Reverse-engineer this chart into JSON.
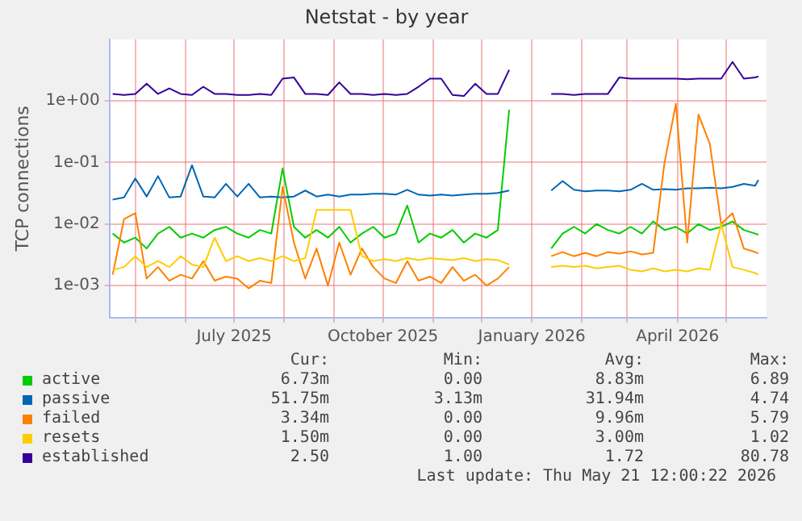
{
  "chart_data": {
    "type": "line",
    "title": "Netstat - by year",
    "ylabel": "TCP connections",
    "log": "y",
    "grid": true,
    "legend": "bottom",
    "marker": "none",
    "line_style": "solid",
    "x": [
      "2025-04-17",
      "2025-04-24",
      "2025-05-01",
      "2025-05-08",
      "2025-05-15",
      "2025-05-22",
      "2025-05-29",
      "2025-06-05",
      "2025-06-12",
      "2025-06-19",
      "2025-06-26",
      "2025-07-03",
      "2025-07-10",
      "2025-07-17",
      "2025-07-24",
      "2025-07-31",
      "2025-08-07",
      "2025-08-14",
      "2025-08-21",
      "2025-08-28",
      "2025-09-04",
      "2025-09-11",
      "2025-09-18",
      "2025-09-25",
      "2025-10-02",
      "2025-10-09",
      "2025-10-16",
      "2025-10-23",
      "2025-10-30",
      "2025-11-06",
      "2025-11-13",
      "2025-11-20",
      "2025-11-27",
      "2025-12-04",
      "2025-12-11",
      "2025-12-18",
      "2025-12-30",
      "2026-01-13",
      "2026-01-20",
      "2026-01-27",
      "2026-02-03",
      "2026-02-10",
      "2026-02-17",
      "2026-02-24",
      "2026-03-03",
      "2026-03-10",
      "2026-03-17",
      "2026-03-24",
      "2026-03-31",
      "2026-04-07",
      "2026-04-14",
      "2026-04-21",
      "2026-04-28",
      "2026-05-05",
      "2026-05-12",
      "2026-05-19",
      "2026-05-21"
    ],
    "xlim": [
      "2025-04-15",
      "2026-05-26"
    ],
    "xticks": [
      {
        "value": "2025-05-01",
        "label": null
      },
      {
        "value": "2025-06-01",
        "label": null
      },
      {
        "value": "2025-07-01",
        "label": "July 2025"
      },
      {
        "value": "2025-08-01",
        "label": null
      },
      {
        "value": "2025-09-01",
        "label": null
      },
      {
        "value": "2025-10-01",
        "label": "October 2025"
      },
      {
        "value": "2025-11-01",
        "label": null
      },
      {
        "value": "2025-12-01",
        "label": null
      },
      {
        "value": "2026-01-01",
        "label": "January 2026"
      },
      {
        "value": "2026-02-01",
        "label": null
      },
      {
        "value": "2026-03-01",
        "label": null
      },
      {
        "value": "2026-04-01",
        "label": "April 2026"
      },
      {
        "value": "2026-05-01",
        "label": null
      }
    ],
    "ylim": [
      0.00034,
      10
    ],
    "yticks": [
      {
        "value": 0.001,
        "label": "1e-03"
      },
      {
        "value": 0.01,
        "label": "1e-02"
      },
      {
        "value": 0.1,
        "label": "1e-01"
      },
      {
        "value": 1,
        "label": "1e+00"
      }
    ],
    "series": [
      {
        "name": "active",
        "color": "#00cc00",
        "values": [
          0.007,
          0.005,
          0.006,
          0.004,
          0.007,
          0.009,
          0.006,
          0.007,
          0.006,
          0.008,
          0.009,
          0.007,
          0.006,
          0.008,
          0.007,
          0.08,
          0.009,
          0.006,
          0.008,
          0.006,
          0.009,
          0.005,
          0.007,
          0.009,
          0.006,
          0.007,
          0.02,
          0.005,
          0.007,
          0.006,
          0.008,
          0.005,
          0.007,
          0.006,
          0.008,
          0.72,
          null,
          0.004,
          0.007,
          0.009,
          0.007,
          0.01,
          0.008,
          0.007,
          0.009,
          0.007,
          0.011,
          0.008,
          0.009,
          0.007,
          0.01,
          0.008,
          0.009,
          0.011,
          0.008,
          0.007,
          0.0067
        ]
      },
      {
        "name": "passive",
        "color": "#0066b3",
        "values": [
          0.025,
          0.027,
          0.055,
          0.028,
          0.06,
          0.027,
          0.028,
          0.09,
          0.028,
          0.027,
          0.045,
          0.028,
          0.045,
          0.027,
          0.028,
          0.027,
          0.028,
          0.035,
          0.028,
          0.03,
          0.028,
          0.03,
          0.03,
          0.031,
          0.031,
          0.03,
          0.036,
          0.03,
          0.029,
          0.03,
          0.029,
          0.03,
          0.031,
          0.031,
          0.032,
          0.035,
          null,
          0.035,
          0.05,
          0.036,
          0.034,
          0.035,
          0.035,
          0.034,
          0.036,
          0.045,
          0.036,
          0.037,
          0.036,
          0.038,
          0.038,
          0.039,
          0.038,
          0.04,
          0.045,
          0.042,
          0.052
        ]
      },
      {
        "name": "failed",
        "color": "#ff8000",
        "values": [
          0.0015,
          0.012,
          0.015,
          0.0013,
          0.002,
          0.0012,
          0.0015,
          0.0013,
          0.0025,
          0.0012,
          0.0014,
          0.0013,
          0.0009,
          0.0012,
          0.0011,
          0.04,
          0.005,
          0.0013,
          0.004,
          0.001,
          0.005,
          0.0015,
          0.004,
          0.002,
          0.0013,
          0.0011,
          0.0025,
          0.0012,
          0.0014,
          0.0011,
          0.002,
          0.0012,
          0.0015,
          0.001,
          0.0013,
          0.002,
          null,
          0.003,
          0.0035,
          0.003,
          0.0034,
          0.003,
          0.0035,
          0.0033,
          0.0036,
          0.0032,
          0.0034,
          0.1,
          0.9,
          0.005,
          0.6,
          0.2,
          0.01,
          0.015,
          0.004,
          0.0035,
          0.00334
        ]
      },
      {
        "name": "resets",
        "color": "#ffcc00",
        "values": [
          0.0018,
          0.002,
          0.003,
          0.002,
          0.0025,
          0.002,
          0.003,
          0.0022,
          0.002,
          0.006,
          0.0025,
          0.003,
          0.0025,
          0.0028,
          0.0025,
          0.003,
          0.0025,
          0.0028,
          0.017,
          0.017,
          0.017,
          0.017,
          0.003,
          0.0025,
          0.0027,
          0.0025,
          0.0028,
          0.0026,
          0.0028,
          0.0027,
          0.0026,
          0.0028,
          0.0025,
          0.0027,
          0.0026,
          0.0022,
          null,
          0.002,
          0.0021,
          0.002,
          0.0021,
          0.0019,
          0.002,
          0.0021,
          0.0018,
          0.0017,
          0.0019,
          0.0017,
          0.0018,
          0.0017,
          0.0019,
          0.0018,
          0.01,
          0.002,
          0.0018,
          0.0016,
          0.0015
        ]
      },
      {
        "name": "established",
        "color": "#330099",
        "values": [
          1.3,
          1.25,
          1.3,
          1.9,
          1.3,
          1.6,
          1.3,
          1.25,
          1.7,
          1.3,
          1.3,
          1.25,
          1.25,
          1.3,
          1.25,
          2.3,
          2.4,
          1.3,
          1.3,
          1.25,
          2.0,
          1.3,
          1.3,
          1.25,
          1.3,
          1.25,
          1.3,
          1.7,
          2.3,
          2.3,
          1.25,
          1.2,
          1.9,
          1.3,
          1.3,
          3.2,
          null,
          1.3,
          1.3,
          1.25,
          1.3,
          1.3,
          1.3,
          2.4,
          2.3,
          2.3,
          2.3,
          2.3,
          2.3,
          2.25,
          2.3,
          2.3,
          2.3,
          4.3,
          2.3,
          2.4,
          2.5
        ]
      }
    ],
    "annotations": [
      "Cur:",
      "Min:",
      "Avg:",
      "Max:",
      "6.73m",
      "0.00",
      "8.83m",
      "6.89",
      "51.75m",
      "3.13m",
      "31.94m",
      "4.74",
      "3.34m",
      "0.00",
      "9.96m",
      "5.79",
      "1.50m",
      "0.00",
      "3.00m",
      "1.02",
      "2.50",
      "1.00",
      "1.72",
      "80.78",
      "Last update: Thu May 21 12:00:22 2026"
    ]
  }
}
